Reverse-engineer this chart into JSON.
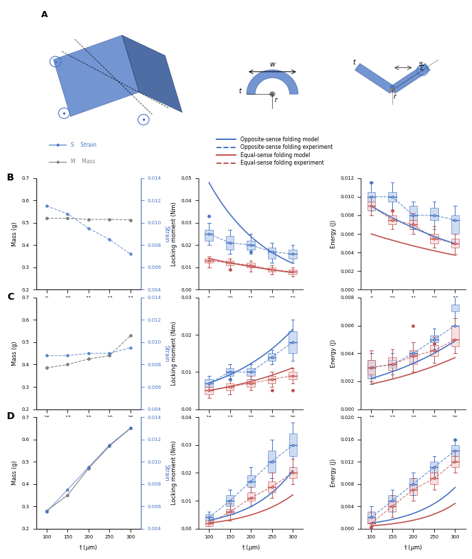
{
  "blue_color": "#4472C4",
  "red_color": "#C0504D",
  "blue_light": "#AEC6E8",
  "red_light": "#F4CCCC",
  "B_r_vals": [
    9,
    10,
    11,
    12,
    13
  ],
  "B_mass": [
    0.52,
    0.52,
    0.515,
    0.515,
    0.513
  ],
  "B_strain": [
    0.0115,
    0.0108,
    0.0095,
    0.0085,
    0.0072
  ],
  "B_blue_box": {
    "x": [
      9,
      10,
      11,
      12,
      13
    ],
    "median": [
      0.025,
      0.021,
      0.02,
      0.017,
      0.016
    ],
    "q1": [
      0.022,
      0.018,
      0.018,
      0.014,
      0.014
    ],
    "q3": [
      0.027,
      0.024,
      0.022,
      0.019,
      0.018
    ],
    "whislo": [
      0.02,
      0.016,
      0.016,
      0.012,
      0.012
    ],
    "whishi": [
      0.03,
      0.027,
      0.025,
      0.021,
      0.02
    ],
    "fliers": [
      [
        0.033
      ],
      [],
      [
        0.017
      ],
      [],
      []
    ]
  },
  "B_red_box": {
    "x": [
      9,
      10,
      11,
      12,
      13
    ],
    "median": [
      0.013,
      0.012,
      0.011,
      0.009,
      0.008
    ],
    "q1": [
      0.012,
      0.011,
      0.01,
      0.008,
      0.007
    ],
    "q3": [
      0.014,
      0.013,
      0.012,
      0.01,
      0.009
    ],
    "whislo": [
      0.01,
      0.009,
      0.008,
      0.007,
      0.006
    ],
    "whishi": [
      0.015,
      0.014,
      0.013,
      0.011,
      0.01
    ],
    "fliers": [
      [],
      [
        0.009
      ],
      [],
      [],
      []
    ]
  },
  "B_energy_blue_box": {
    "x": [
      9,
      10,
      11,
      12,
      13
    ],
    "median": [
      0.01,
      0.01,
      0.008,
      0.008,
      0.0075
    ],
    "q1": [
      0.0095,
      0.0095,
      0.0075,
      0.0075,
      0.006
    ],
    "q3": [
      0.0105,
      0.0105,
      0.009,
      0.0088,
      0.008
    ],
    "whislo": [
      0.0085,
      0.0085,
      0.0065,
      0.0065,
      0.005
    ],
    "whishi": [
      0.0115,
      0.0115,
      0.0095,
      0.0095,
      0.009
    ],
    "fliers": [
      [
        0.0115
      ],
      [],
      [],
      [],
      []
    ]
  },
  "B_energy_red_box": {
    "x": [
      9,
      10,
      11,
      12,
      13
    ],
    "median": [
      0.009,
      0.0075,
      0.007,
      0.0055,
      0.005
    ],
    "q1": [
      0.0085,
      0.007,
      0.0065,
      0.005,
      0.0045
    ],
    "q3": [
      0.0095,
      0.008,
      0.0075,
      0.006,
      0.0055
    ],
    "whislo": [
      0.008,
      0.0065,
      0.006,
      0.0045,
      0.0038
    ],
    "whishi": [
      0.01,
      0.0085,
      0.0082,
      0.0068,
      0.006
    ],
    "fliers": [
      [],
      [
        0.0085
      ],
      [],
      [],
      []
    ]
  },
  "C_w_vals": [
    16,
    17,
    18,
    19,
    20
  ],
  "C_mass": [
    0.385,
    0.4,
    0.425,
    0.44,
    0.53
  ],
  "C_strain": [
    0.0088,
    0.0088,
    0.009,
    0.009,
    0.0095
  ],
  "C_blue_box": {
    "x": [
      16,
      17,
      18,
      19,
      20
    ],
    "median": [
      0.007,
      0.01,
      0.01,
      0.014,
      0.018
    ],
    "q1": [
      0.006,
      0.009,
      0.009,
      0.013,
      0.015
    ],
    "q3": [
      0.008,
      0.011,
      0.011,
      0.015,
      0.021
    ],
    "whislo": [
      0.005,
      0.008,
      0.008,
      0.012,
      0.013
    ],
    "whishi": [
      0.009,
      0.012,
      0.012,
      0.016,
      0.024
    ],
    "fliers": [
      [],
      [
        0.008
      ],
      [],
      [],
      []
    ]
  },
  "C_red_box": {
    "x": [
      16,
      17,
      18,
      19,
      20
    ],
    "median": [
      0.005,
      0.006,
      0.007,
      0.008,
      0.009
    ],
    "q1": [
      0.004,
      0.005,
      0.006,
      0.007,
      0.008
    ],
    "q3": [
      0.006,
      0.007,
      0.008,
      0.009,
      0.01
    ],
    "whislo": [
      0.003,
      0.004,
      0.005,
      0.006,
      0.007
    ],
    "whishi": [
      0.007,
      0.008,
      0.009,
      0.01,
      0.011
    ],
    "fliers": [
      [],
      [],
      [],
      [
        0.005
      ],
      [
        0.005
      ]
    ]
  },
  "C_energy_blue_box": {
    "x": [
      16,
      17,
      18,
      19,
      20
    ],
    "median": [
      0.003,
      0.0032,
      0.004,
      0.005,
      0.006
    ],
    "q1": [
      0.0022,
      0.003,
      0.0038,
      0.0048,
      0.007
    ],
    "q3": [
      0.0035,
      0.0035,
      0.0042,
      0.0053,
      0.0075
    ],
    "whislo": [
      0.0018,
      0.0025,
      0.0033,
      0.0043,
      0.0065
    ],
    "whishi": [
      0.004,
      0.004,
      0.0048,
      0.0058,
      0.0082
    ],
    "fliers": [
      [],
      [],
      [],
      [],
      []
    ]
  },
  "C_energy_red_box": {
    "x": [
      16,
      17,
      18,
      19,
      20
    ],
    "median": [
      0.003,
      0.0032,
      0.0038,
      0.0042,
      0.005
    ],
    "q1": [
      0.0025,
      0.0028,
      0.0032,
      0.0038,
      0.0045
    ],
    "q3": [
      0.0035,
      0.0037,
      0.0042,
      0.0046,
      0.006
    ],
    "whislo": [
      0.002,
      0.0022,
      0.0027,
      0.0033,
      0.004
    ],
    "whishi": [
      0.0042,
      0.0043,
      0.0048,
      0.0052,
      0.0065
    ],
    "fliers": [
      [],
      [],
      [
        0.006
      ],
      [
        0.0047
      ],
      []
    ]
  },
  "D_t_vals": [
    100,
    150,
    200,
    250,
    300
  ],
  "D_mass": [
    0.28,
    0.35,
    0.47,
    0.57,
    0.65
  ],
  "D_strain": [
    0.0055,
    0.0075,
    0.0095,
    0.0115,
    0.013
  ],
  "D_blue_box": {
    "x": [
      100,
      150,
      200,
      250,
      300
    ],
    "median": [
      0.004,
      0.01,
      0.017,
      0.024,
      0.03
    ],
    "q1": [
      0.003,
      0.008,
      0.015,
      0.02,
      0.026
    ],
    "q3": [
      0.005,
      0.012,
      0.019,
      0.028,
      0.034
    ],
    "whislo": [
      0.002,
      0.006,
      0.013,
      0.018,
      0.022
    ],
    "whishi": [
      0.006,
      0.014,
      0.022,
      0.032,
      0.038
    ],
    "fliers": [
      [],
      [],
      [],
      [],
      []
    ]
  },
  "D_red_box": {
    "x": [
      100,
      150,
      200,
      250,
      300
    ],
    "median": [
      0.002,
      0.006,
      0.011,
      0.015,
      0.02
    ],
    "q1": [
      0.001,
      0.005,
      0.01,
      0.013,
      0.018
    ],
    "q3": [
      0.003,
      0.007,
      0.013,
      0.017,
      0.022
    ],
    "whislo": [
      0.001,
      0.003,
      0.008,
      0.011,
      0.016
    ],
    "whishi": [
      0.004,
      0.009,
      0.015,
      0.02,
      0.025
    ],
    "fliers": [
      [],
      [],
      [],
      [],
      []
    ]
  },
  "D_energy_blue_box": {
    "x": [
      100,
      150,
      200,
      250,
      300
    ],
    "median": [
      0.002,
      0.005,
      0.008,
      0.011,
      0.014
    ],
    "q1": [
      0.001,
      0.004,
      0.007,
      0.01,
      0.013
    ],
    "q3": [
      0.003,
      0.006,
      0.009,
      0.012,
      0.015
    ],
    "whislo": [
      0.001,
      0.003,
      0.006,
      0.009,
      0.012
    ],
    "whishi": [
      0.004,
      0.007,
      0.01,
      0.013,
      0.016
    ],
    "fliers": [
      [],
      [],
      [],
      [],
      [
        0.016
      ]
    ]
  },
  "D_energy_red_box": {
    "x": [
      100,
      150,
      200,
      250,
      300
    ],
    "median": [
      0.001,
      0.004,
      0.007,
      0.009,
      0.012
    ],
    "q1": [
      0.001,
      0.003,
      0.006,
      0.008,
      0.011
    ],
    "q3": [
      0.002,
      0.005,
      0.008,
      0.01,
      0.013
    ],
    "whislo": [
      0.0005,
      0.002,
      0.005,
      0.007,
      0.01
    ],
    "whishi": [
      0.003,
      0.006,
      0.009,
      0.011,
      0.014
    ],
    "fliers": [
      [
        0.0002
      ],
      [],
      [],
      [],
      []
    ]
  }
}
